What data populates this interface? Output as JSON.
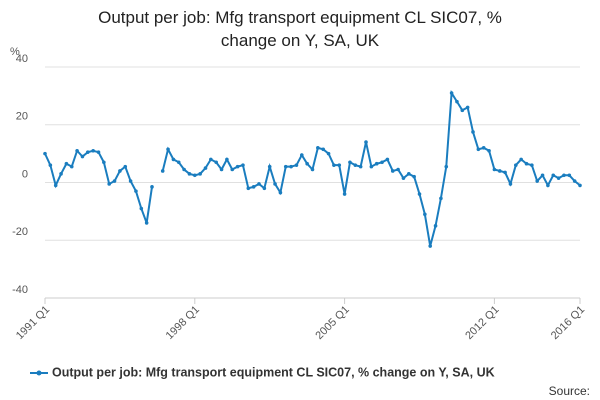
{
  "chart_data": {
    "type": "line",
    "title": "Output per job: Mfg transport equipment CL SIC07, % change on Y, SA, UK",
    "y_label": "%",
    "source": "Source:",
    "categories": [
      "1991 Q1",
      null,
      null,
      null,
      null,
      null,
      null,
      null,
      null,
      null,
      null,
      null,
      null,
      null,
      null,
      null,
      null,
      null,
      null,
      null,
      null,
      null,
      null,
      null,
      null,
      null,
      null,
      null,
      "1998 Q1",
      null,
      null,
      null,
      null,
      null,
      null,
      null,
      null,
      null,
      null,
      null,
      null,
      null,
      null,
      null,
      null,
      null,
      null,
      null,
      null,
      null,
      null,
      null,
      null,
      null,
      null,
      null,
      "2005 Q1",
      null,
      null,
      null,
      null,
      null,
      null,
      null,
      null,
      null,
      null,
      null,
      null,
      null,
      null,
      null,
      null,
      null,
      null,
      null,
      null,
      null,
      null,
      null,
      null,
      null,
      null,
      null,
      "2012 Q1",
      null,
      null,
      null,
      null,
      null,
      null,
      null,
      null,
      null,
      null,
      null,
      null,
      null,
      null,
      null,
      "2016 Q1"
    ],
    "series": [
      {
        "name": "Output per job: Mfg transport equipment CL SIC07, % change on Y, SA, UK",
        "color": "#1a7dbf",
        "values": [
          10,
          6,
          -1,
          3,
          6.5,
          5.5,
          11,
          9,
          10.5,
          11,
          10.5,
          7,
          -0.5,
          0.5,
          4,
          5.5,
          0.5,
          -3,
          -9,
          -14,
          -1.5,
          null,
          4,
          11.5,
          8,
          7,
          4.5,
          3,
          2.5,
          3,
          5,
          8,
          7,
          4.5,
          8,
          4.5,
          5.5,
          6,
          -2,
          -1.5,
          -0.5,
          -2,
          5.5,
          -0.5,
          -3.5,
          5.5,
          5.5,
          6,
          9.5,
          6.5,
          4.5,
          12,
          11.5,
          10,
          6,
          6,
          -4,
          7,
          6,
          5.5,
          14,
          5.5,
          6.5,
          7,
          8,
          4,
          4.5,
          1.5,
          3,
          2,
          -4,
          -11,
          -22,
          -15,
          -5.5,
          5.5,
          31,
          28,
          25,
          26,
          17.5,
          11.5,
          12,
          11,
          4.5,
          4,
          3.5,
          -0.5,
          6,
          8,
          6.5,
          6,
          0.5,
          2.5,
          -1,
          2.5,
          1.5,
          2.5,
          2.5,
          0.5,
          -1
        ]
      }
    ],
    "ylim": [
      -40,
      40
    ],
    "yticks": [
      -40,
      -20,
      0,
      20,
      40
    ],
    "grid": true,
    "legend": "bottom"
  }
}
